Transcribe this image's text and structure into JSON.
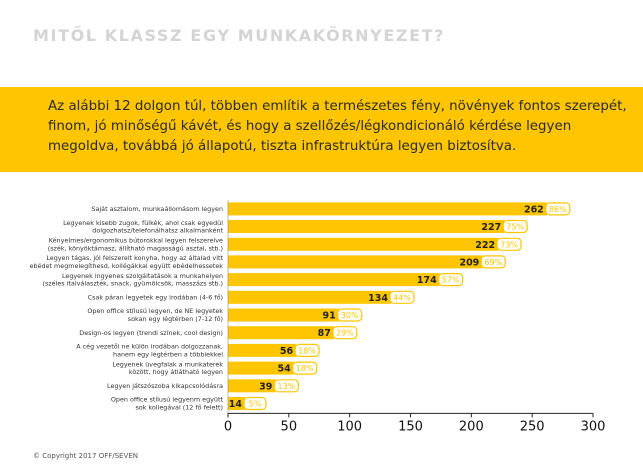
{
  "page": {
    "title": "MITŐL KLASSZ EGY MUNKAKÖRNYEZET?",
    "intro": "Az alábbi 12 dolgon túl, többen említik a természetes fény, növények fontos szerepét, finom, jó minőségű kávét, és hogy a szellőzés/légkondicionáló kérdése legyen megoldva, továbbá jó állapotú, tiszta infrastruktúra legyen biztosítva.",
    "footer": "© Copyright 2017 OFF/SEVEN"
  },
  "colors": {
    "bar": "#ffc600",
    "pill_border": "#ffc600",
    "pct_text": "#ffc600",
    "banner": "#ffc600",
    "title": "#d4d4d4",
    "axis": "#222222",
    "label": "#333333"
  },
  "chart_data": {
    "type": "bar",
    "orientation": "horizontal",
    "xlim": [
      0,
      300
    ],
    "xticks": [
      0,
      50,
      100,
      150,
      200,
      250,
      300
    ],
    "grid": false,
    "categories": [
      [
        "Saját asztalom, munkaállomásom legyen"
      ],
      [
        "Legyenek kisebb zugok, fülkék, ahol csak egyedül",
        "dolgozhatsz/telefonálhatsz alkalmanként"
      ],
      [
        "Kényelmes/ergonomikus bútorokkal legyen felszerelve",
        "(szék, könyöktámasz, állítható magasságú asztal, stb.)"
      ],
      [
        "Legyen tágas, jól felszerelt konyha, hogy az általad vitt",
        "ebédet megmelegíthesd, kollégákkal együtt ebédelhessetek"
      ],
      [
        "Legyenek ingyenes szolgáltatások a munkahelyen",
        "(széles italválaszték, snack, gyümölcsök, masszázs stb.)"
      ],
      [
        "Csak páran legyetek egy irodában (4-6 fő)"
      ],
      [
        "Open office stílusú legyen, de NE legyetek",
        "sokan egy légtérben (7-12 fő)"
      ],
      [
        "Design-os legyen (trendi színek, cool design)"
      ],
      [
        "A cég vezetői ne külön irodában dolgozzanak,",
        "hanem egy légtérben a többiekkel"
      ],
      [
        "Legyenek üvegfalak a munkaterek",
        "között, hogy átlátható legyen"
      ],
      [
        "Legyen játszószoba kikapcsolódásra"
      ],
      [
        "Open office stílusú legyenm együtt",
        "sok kollegával (12 fő felett)"
      ]
    ],
    "values": [
      262,
      227,
      222,
      209,
      174,
      134,
      91,
      87,
      56,
      54,
      39,
      14
    ],
    "percent_labels": [
      "86%",
      "75%",
      "73%",
      "69%",
      "57%",
      "44%",
      "30%",
      "29%",
      "18%",
      "18%",
      "13%",
      "5%"
    ]
  }
}
